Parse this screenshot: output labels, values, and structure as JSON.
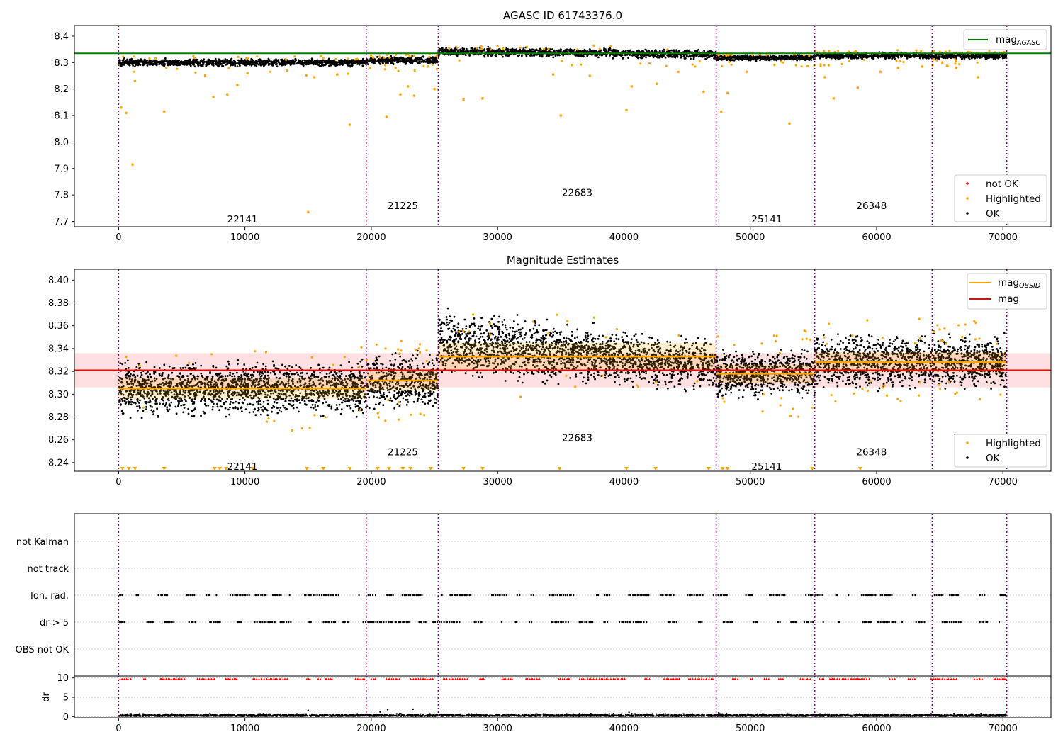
{
  "chart_data": [
    {
      "type": "scatter",
      "title": "AGASC ID 61743376.0",
      "xlim": [
        -3500,
        73800
      ],
      "ylim": [
        7.68,
        8.44
      ],
      "xticks": [
        0,
        10000,
        20000,
        30000,
        40000,
        50000,
        60000,
        70000,
        80000
      ],
      "yticks": [
        7.7,
        7.8,
        7.9,
        8.0,
        8.1,
        8.2,
        8.3,
        8.4
      ],
      "yticklabels": [
        "7.7",
        "7.8",
        "7.9",
        "8.0",
        "8.1",
        "8.2",
        "8.3",
        "8.4"
      ],
      "mag_agasc": 8.335,
      "obsid_boundaries": [
        0,
        19600,
        25300,
        47300,
        55100,
        64400,
        70300
      ],
      "obsids": [
        {
          "label": "22141",
          "x": 9800,
          "y": 7.71,
          "start": 0,
          "end": 19600,
          "base": 8.3,
          "spread": 0.011
        },
        {
          "label": "21225",
          "x": 22500,
          "y": 7.76,
          "start": 19600,
          "end": 25300,
          "base": 8.309,
          "spread": 0.011
        },
        {
          "label": "22683",
          "x": 36300,
          "y": 7.81,
          "start": 25300,
          "end": 47300,
          "base": 8.337,
          "spread": 0.013
        },
        {
          "label": "25141",
          "x": 51300,
          "y": 7.71,
          "start": 47300,
          "end": 55100,
          "base": 8.318,
          "spread": 0.008
        },
        {
          "label": "26348",
          "x": 59600,
          "y": 7.76,
          "start": 55100,
          "end": 64400,
          "base": 8.326,
          "spread": 0.009
        },
        {
          "label": "26349",
          "x": 67300,
          "y": 7.81,
          "start": 64400,
          "end": 70300,
          "base": 8.325,
          "spread": 0.009
        }
      ],
      "highlighted_outliers": [
        {
          "x": 200,
          "y": 8.13
        },
        {
          "x": 600,
          "y": 8.11
        },
        {
          "x": 1100,
          "y": 7.915
        },
        {
          "x": 1300,
          "y": 8.23
        },
        {
          "x": 3600,
          "y": 8.115
        },
        {
          "x": 7500,
          "y": 8.17
        },
        {
          "x": 8600,
          "y": 8.18
        },
        {
          "x": 9400,
          "y": 8.215
        },
        {
          "x": 10200,
          "y": 8.26
        },
        {
          "x": 15000,
          "y": 7.735
        },
        {
          "x": 15500,
          "y": 8.245
        },
        {
          "x": 17300,
          "y": 8.255
        },
        {
          "x": 18300,
          "y": 8.065
        },
        {
          "x": 21200,
          "y": 8.095
        },
        {
          "x": 22300,
          "y": 8.18
        },
        {
          "x": 22900,
          "y": 8.21
        },
        {
          "x": 23400,
          "y": 8.175
        },
        {
          "x": 25000,
          "y": 8.2
        },
        {
          "x": 27300,
          "y": 8.16
        },
        {
          "x": 28800,
          "y": 8.165
        },
        {
          "x": 34400,
          "y": 8.255
        },
        {
          "x": 35000,
          "y": 8.1
        },
        {
          "x": 37300,
          "y": 8.25
        },
        {
          "x": 40200,
          "y": 8.12
        },
        {
          "x": 40600,
          "y": 8.21
        },
        {
          "x": 42600,
          "y": 8.22
        },
        {
          "x": 44300,
          "y": 8.265
        },
        {
          "x": 46300,
          "y": 8.19
        },
        {
          "x": 47700,
          "y": 8.115
        },
        {
          "x": 48200,
          "y": 8.185
        },
        {
          "x": 49700,
          "y": 8.265
        },
        {
          "x": 53100,
          "y": 8.07
        },
        {
          "x": 55900,
          "y": 8.245
        },
        {
          "x": 56600,
          "y": 8.165
        },
        {
          "x": 58500,
          "y": 8.205
        },
        {
          "x": 60300,
          "y": 8.265
        },
        {
          "x": 61700,
          "y": 8.28
        },
        {
          "x": 63600,
          "y": 8.285
        },
        {
          "x": 65200,
          "y": 8.3
        },
        {
          "x": 66300,
          "y": 8.28
        },
        {
          "x": 68000,
          "y": 8.245
        }
      ],
      "legend_lines": [
        {
          "name": "mag",
          "subscript": "AGASC",
          "color": "#008000"
        }
      ],
      "legend_points": [
        {
          "name": "not OK",
          "color": "#ff0000"
        },
        {
          "name": "Highlighted",
          "color": "#ffa500"
        },
        {
          "name": "OK",
          "color": "#000000"
        }
      ]
    },
    {
      "type": "scatter",
      "title": "Magnitude Estimates",
      "xlim": [
        -3500,
        73800
      ],
      "ylim": [
        8.2325,
        8.4095
      ],
      "xticks": [
        0,
        10000,
        20000,
        30000,
        40000,
        50000,
        60000,
        70000,
        80000
      ],
      "yticks": [
        8.24,
        8.26,
        8.28,
        8.3,
        8.32,
        8.34,
        8.36,
        8.38,
        8.4
      ],
      "yticklabels": [
        "8.24",
        "8.26",
        "8.28",
        "8.30",
        "8.32",
        "8.34",
        "8.36",
        "8.38",
        "8.40"
      ],
      "mag": 8.321,
      "mag_band": [
        8.306,
        8.336
      ],
      "obsid_mags": [
        {
          "label": "22141",
          "start": 0,
          "end": 19600,
          "mag": 8.305,
          "band": [
            8.296,
            8.314
          ],
          "text_y": 8.237,
          "text_x": 9800
        },
        {
          "label": "21225",
          "start": 19600,
          "end": 25300,
          "mag": 8.312,
          "band": [
            8.303,
            8.322
          ],
          "text_y": 8.2495,
          "text_x": 22500
        },
        {
          "label": "22683",
          "start": 25300,
          "end": 47300,
          "mag": 8.333,
          "band": [
            8.321,
            8.345
          ],
          "text_y": 8.262,
          "text_x": 36300
        },
        {
          "label": "25141",
          "start": 47300,
          "end": 55100,
          "mag": 8.318,
          "band": [
            8.31,
            8.326
          ],
          "text_y": 8.237,
          "text_x": 51300
        },
        {
          "label": "26348",
          "start": 55100,
          "end": 64400,
          "mag": 8.328,
          "band": [
            8.319,
            8.337
          ],
          "text_y": 8.2495,
          "text_x": 59600
        },
        {
          "label": "26349",
          "start": 64400,
          "end": 70300,
          "mag": 8.328,
          "band": [
            8.319,
            8.337
          ],
          "text_y": 8.262,
          "text_x": 67300
        }
      ],
      "bottom_markers_x": [
        300,
        800,
        1300,
        3600,
        7600,
        8000,
        8500,
        10600,
        14900,
        16200,
        18300,
        20500,
        21400,
        22500,
        23100,
        24700,
        27300,
        28800,
        34900,
        40200,
        42500,
        46700,
        47800,
        48200,
        54900,
        58700
      ],
      "legend_lines": [
        {
          "name": "mag",
          "subscript": "OBSID",
          "color": "#ffa500"
        },
        {
          "name": "mag",
          "subscript": "",
          "color": "#ff0000"
        }
      ],
      "legend_points": [
        {
          "name": "Highlighted",
          "color": "#ffa500"
        },
        {
          "name": "OK",
          "color": "#000000"
        }
      ]
    },
    {
      "type": "scatter",
      "xlim": [
        -3500,
        73800
      ],
      "category_rows": [
        "not Kalman",
        "not track",
        "Ion. rad.",
        "dr > 5",
        "OBS not OK"
      ],
      "flag_rows": [
        "Ion. rad.",
        "dr > 5"
      ]
    },
    {
      "type": "scatter",
      "xlim": [
        -3500,
        73800
      ],
      "ylim": [
        -0.3,
        10.5
      ],
      "ylabel": "dr",
      "yticks": [
        0,
        5,
        10
      ],
      "yticklabels": [
        "0",
        "5",
        "10"
      ],
      "xticks": [
        0,
        10000,
        20000,
        30000,
        40000,
        50000,
        60000,
        70000,
        80000
      ]
    }
  ]
}
